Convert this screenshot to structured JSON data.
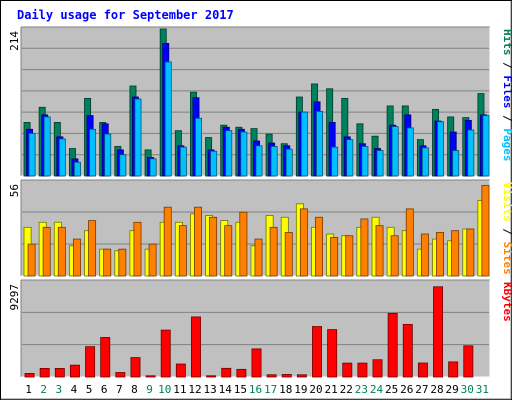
{
  "chart_data": {
    "type": "bar",
    "title": "Daily usage for September 2017",
    "categories": [
      "1",
      "2",
      "3",
      "4",
      "5",
      "6",
      "7",
      "8",
      "9",
      "10",
      "11",
      "12",
      "13",
      "14",
      "15",
      "16",
      "17",
      "18",
      "19",
      "20",
      "21",
      "22",
      "23",
      "24",
      "25",
      "26",
      "27",
      "28",
      "29",
      "30",
      "31"
    ],
    "weekend_days": [
      2,
      3,
      9,
      10,
      16,
      17,
      23,
      24,
      30,
      31
    ],
    "weekday_label_color": "#000000",
    "weekend_label_color": "#00805c",
    "background_color": "#c0c0c0",
    "title_color": "#0000ff",
    "grid": true,
    "panels": [
      {
        "id": "hits-files-pages",
        "ymax": 214,
        "ymax_label": "214",
        "legend": [
          {
            "text": "Pages",
            "color": "#00c0ff"
          },
          {
            "text": " / ",
            "color": "#000000"
          },
          {
            "text": "Files",
            "color": "#0000ff"
          },
          {
            "text": " / ",
            "color": "#000000"
          },
          {
            "text": "Hits",
            "color": "#00805c"
          }
        ],
        "series": [
          {
            "name": "Hits",
            "color": "#00805c",
            "values": [
              78,
              100,
              78,
              40,
              113,
              78,
              43,
              131,
              38,
              214,
              66,
              122,
              56,
              74,
              71,
              69,
              61,
              47,
              115,
              134,
              127,
              113,
              76,
              58,
              102,
              102,
              53,
              97,
              86,
              85,
              120
            ]
          },
          {
            "name": "Files",
            "color": "#0000ff",
            "values": [
              68,
              89,
              57,
              25,
              88,
              76,
              38,
              115,
              27,
              193,
              44,
              114,
              38,
              71,
              68,
              51,
              48,
              44,
              93,
              108,
              78,
              57,
              47,
              40,
              74,
              89,
              44,
              80,
              64,
              81,
              89
            ]
          },
          {
            "name": "Pages",
            "color": "#00c0ff",
            "values": [
              62,
              86,
              54,
              20,
              68,
              61,
              31,
              112,
              25,
              166,
              42,
              84,
              36,
              66,
              64,
              44,
              43,
              39,
              93,
              94,
              42,
              53,
              43,
              37,
              72,
              70,
              41,
              79,
              37,
              67,
              88
            ]
          }
        ]
      },
      {
        "id": "visits-sites",
        "ymax": 56,
        "ymax_label": "56",
        "legend": [
          {
            "text": "Sites",
            "color": "#ff8000"
          },
          {
            "text": " / ",
            "color": "#000000"
          },
          {
            "text": "Visits",
            "color": "#ffff00"
          }
        ],
        "series": [
          {
            "name": "Visits",
            "color": "#ffff00",
            "values": [
              29,
              32,
              32,
              18,
              27,
              16,
              15,
              27,
              16,
              32,
              32,
              37,
              36,
              33,
              32,
              18,
              36,
              35,
              43,
              29,
              25,
              24,
              29,
              35,
              29,
              27,
              16,
              22,
              21,
              28,
              45
            ]
          },
          {
            "name": "Sites",
            "color": "#ff8000",
            "values": [
              19,
              29,
              29,
              22,
              33,
              16,
              16,
              32,
              19,
              41,
              30,
              41,
              35,
              30,
              38,
              22,
              29,
              26,
              40,
              35,
              23,
              24,
              34,
              30,
              24,
              40,
              25,
              26,
              27,
              28,
              54
            ]
          }
        ]
      },
      {
        "id": "kbytes",
        "ymax": 9297,
        "ymax_label": "9297",
        "legend": [
          {
            "text": "KBytes",
            "color": "#ff0000"
          }
        ],
        "series": [
          {
            "name": "KBytes",
            "color": "#ff0000",
            "values": [
              350,
              840,
              840,
              1160,
              2970,
              3870,
              440,
              1900,
              120,
              4590,
              1270,
              5880,
              120,
              850,
              750,
              2750,
              220,
              250,
              220,
              4940,
              4640,
              1360,
              1360,
              1690,
              6230,
              5150,
              1370,
              8830,
              1480,
              3050,
              0
            ]
          }
        ]
      }
    ]
  }
}
